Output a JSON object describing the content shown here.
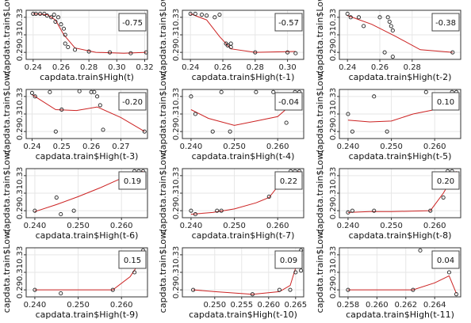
{
  "chart_data": [
    {
      "type": "scatter",
      "xlabel": "capdata.train$High(t)",
      "ylabel": "capdata.train$Low(",
      "corr_label": "-0.75",
      "xlim": [
        0.235,
        0.322
      ],
      "ylim": [
        0.282,
        0.338
      ],
      "xticks": [
        0.24,
        0.26,
        0.28,
        0.3,
        0.32
      ],
      "xticklabels": [
        "0.24",
        "0.26",
        "0.28",
        "0.30",
        "0.32"
      ],
      "yticks": [
        0.29,
        0.31,
        0.33
      ],
      "yticklabels": [
        "0.29",
        "0.31",
        "0.33"
      ],
      "points": [
        [
          0.24,
          0.334
        ],
        [
          0.242,
          0.334
        ],
        [
          0.245,
          0.334
        ],
        [
          0.248,
          0.334
        ],
        [
          0.25,
          0.332
        ],
        [
          0.253,
          0.33
        ],
        [
          0.255,
          0.333
        ],
        [
          0.256,
          0.325
        ],
        [
          0.258,
          0.33
        ],
        [
          0.26,
          0.322
        ],
        [
          0.262,
          0.317
        ],
        [
          0.263,
          0.31
        ],
        [
          0.265,
          0.296
        ],
        [
          0.263,
          0.3
        ],
        [
          0.27,
          0.293
        ],
        [
          0.28,
          0.291
        ],
        [
          0.295,
          0.29
        ],
        [
          0.31,
          0.289
        ],
        [
          0.321,
          0.29
        ]
      ],
      "fit_line": [
        [
          0.24,
          0.334
        ],
        [
          0.25,
          0.333
        ],
        [
          0.256,
          0.327
        ],
        [
          0.262,
          0.31
        ],
        [
          0.27,
          0.295
        ],
        [
          0.285,
          0.29
        ],
        [
          0.305,
          0.289
        ],
        [
          0.321,
          0.29
        ]
      ]
    },
    {
      "type": "scatter",
      "xlabel": "capdata.train$High(t-1)",
      "ylabel": "capdata.train$Low(",
      "corr_label": "-0.57",
      "xlim": [
        0.235,
        0.31
      ],
      "ylim": [
        0.282,
        0.338
      ],
      "xticks": [
        0.24,
        0.26,
        0.28,
        0.3
      ],
      "xticklabels": [
        "0.24",
        "0.26",
        "0.28",
        "0.30"
      ],
      "yticks": [
        0.29,
        0.31,
        0.33
      ],
      "yticklabels": [
        "0.29",
        "0.31",
        "0.33"
      ],
      "points": [
        [
          0.24,
          0.334
        ],
        [
          0.243,
          0.334
        ],
        [
          0.247,
          0.333
        ],
        [
          0.25,
          0.332
        ],
        [
          0.255,
          0.33
        ],
        [
          0.258,
          0.333
        ],
        [
          0.262,
          0.3
        ],
        [
          0.263,
          0.298
        ],
        [
          0.265,
          0.296
        ],
        [
          0.265,
          0.3
        ],
        [
          0.28,
          0.29
        ],
        [
          0.3,
          0.29
        ],
        [
          0.305,
          0.289
        ]
      ],
      "fit_line": [
        [
          0.24,
          0.334
        ],
        [
          0.25,
          0.327
        ],
        [
          0.258,
          0.308
        ],
        [
          0.265,
          0.294
        ],
        [
          0.28,
          0.29
        ],
        [
          0.305,
          0.291
        ]
      ]
    },
    {
      "type": "scatter",
      "xlabel": "capdata.train$High(t-2)",
      "ylabel": "capdata.train$Low(",
      "corr_label": "-0.38",
      "xlim": [
        0.235,
        0.31
      ],
      "ylim": [
        0.282,
        0.338
      ],
      "xticks": [
        0.24,
        0.26,
        0.28
      ],
      "xticklabels": [
        "0.24",
        "0.26",
        "0.28"
      ],
      "yticks": [
        0.29,
        0.31,
        0.33
      ],
      "yticklabels": [
        "0.29",
        "0.31",
        "0.33"
      ],
      "points": [
        [
          0.24,
          0.334
        ],
        [
          0.242,
          0.33
        ],
        [
          0.247,
          0.33
        ],
        [
          0.25,
          0.32
        ],
        [
          0.26,
          0.33
        ],
        [
          0.265,
          0.33
        ],
        [
          0.266,
          0.325
        ],
        [
          0.267,
          0.32
        ],
        [
          0.268,
          0.315
        ],
        [
          0.263,
          0.29
        ],
        [
          0.268,
          0.285
        ],
        [
          0.305,
          0.29
        ]
      ],
      "fit_line": [
        [
          0.24,
          0.332
        ],
        [
          0.255,
          0.322
        ],
        [
          0.27,
          0.308
        ],
        [
          0.285,
          0.293
        ],
        [
          0.305,
          0.29
        ]
      ]
    },
    {
      "type": "scatter",
      "xlabel": "capdata.train$High(t-3)",
      "ylabel": "capdata.train$Low(",
      "corr_label": "-0.20",
      "xlim": [
        0.238,
        0.279
      ],
      "ylim": [
        0.282,
        0.338
      ],
      "xticks": [
        0.24,
        0.25,
        0.26,
        0.27
      ],
      "xticklabels": [
        "0.24",
        "0.25",
        "0.26",
        "0.27"
      ],
      "yticks": [
        0.29,
        0.31,
        0.33
      ],
      "yticklabels": [
        "0.29",
        "0.31",
        "0.33"
      ],
      "points": [
        [
          0.24,
          0.334
        ],
        [
          0.241,
          0.33
        ],
        [
          0.246,
          0.335
        ],
        [
          0.248,
          0.29
        ],
        [
          0.25,
          0.315
        ],
        [
          0.256,
          0.336
        ],
        [
          0.26,
          0.335
        ],
        [
          0.261,
          0.335
        ],
        [
          0.262,
          0.33
        ],
        [
          0.263,
          0.32
        ],
        [
          0.264,
          0.292
        ],
        [
          0.278,
          0.29
        ]
      ],
      "fit_line": [
        [
          0.24,
          0.332
        ],
        [
          0.248,
          0.315
        ],
        [
          0.255,
          0.314
        ],
        [
          0.262,
          0.318
        ],
        [
          0.27,
          0.306
        ],
        [
          0.278,
          0.29
        ]
      ]
    },
    {
      "type": "scatter",
      "xlabel": "capdata.train$High(t-4)",
      "ylabel": "capdata.train$Low(",
      "corr_label": "-0.04",
      "xlim": [
        0.238,
        0.266
      ],
      "ylim": [
        0.282,
        0.338
      ],
      "xticks": [
        0.24,
        0.25,
        0.26
      ],
      "xticklabels": [
        "0.240",
        "0.250",
        "0.260"
      ],
      "yticks": [
        0.29,
        0.31,
        0.33
      ],
      "yticklabels": [
        "0.29",
        "0.31",
        "0.33"
      ],
      "points": [
        [
          0.24,
          0.33
        ],
        [
          0.241,
          0.31
        ],
        [
          0.245,
          0.29
        ],
        [
          0.247,
          0.335
        ],
        [
          0.249,
          0.29
        ],
        [
          0.255,
          0.335
        ],
        [
          0.259,
          0.335
        ],
        [
          0.26,
          0.33
        ],
        [
          0.262,
          0.3
        ],
        [
          0.264,
          0.335
        ],
        [
          0.265,
          0.335
        ]
      ],
      "fit_line": [
        [
          0.24,
          0.315
        ],
        [
          0.244,
          0.305
        ],
        [
          0.25,
          0.297
        ],
        [
          0.255,
          0.302
        ],
        [
          0.26,
          0.307
        ],
        [
          0.263,
          0.32
        ],
        [
          0.265,
          0.334
        ]
      ]
    },
    {
      "type": "scatter",
      "xlabel": "capdata.train$High(t-5)",
      "ylabel": "capdata.train$Low(",
      "corr_label": "0.10",
      "xlim": [
        0.238,
        0.266
      ],
      "ylim": [
        0.282,
        0.338
      ],
      "xticks": [
        0.24,
        0.25,
        0.26
      ],
      "xticklabels": [
        "0.240",
        "0.250",
        "0.260"
      ],
      "yticks": [
        0.29,
        0.31,
        0.33
      ],
      "yticklabels": [
        "0.29",
        "0.31",
        "0.33"
      ],
      "points": [
        [
          0.24,
          0.31
        ],
        [
          0.241,
          0.29
        ],
        [
          0.246,
          0.33
        ],
        [
          0.249,
          0.29
        ],
        [
          0.258,
          0.335
        ],
        [
          0.262,
          0.33
        ],
        [
          0.264,
          0.335
        ],
        [
          0.265,
          0.335
        ]
      ],
      "fit_line": [
        [
          0.24,
          0.303
        ],
        [
          0.245,
          0.301
        ],
        [
          0.25,
          0.302
        ],
        [
          0.255,
          0.31
        ],
        [
          0.26,
          0.315
        ],
        [
          0.263,
          0.326
        ],
        [
          0.265,
          0.334
        ]
      ]
    },
    {
      "type": "scatter",
      "xlabel": "capdata.train$High(t-6)",
      "ylabel": "capdata.train$Low(",
      "corr_label": "0.19",
      "xlim": [
        0.238,
        0.266
      ],
      "ylim": [
        0.282,
        0.338
      ],
      "xticks": [
        0.24,
        0.25,
        0.26
      ],
      "xticklabels": [
        "0.240",
        "0.250",
        "0.260"
      ],
      "yticks": [
        0.29,
        0.31,
        0.33
      ],
      "yticklabels": [
        "0.29",
        "0.31",
        "0.33"
      ],
      "points": [
        [
          0.24,
          0.29
        ],
        [
          0.245,
          0.305
        ],
        [
          0.246,
          0.286
        ],
        [
          0.249,
          0.29
        ],
        [
          0.26,
          0.33
        ],
        [
          0.263,
          0.335
        ],
        [
          0.264,
          0.335
        ],
        [
          0.265,
          0.335
        ]
      ],
      "fit_line": [
        [
          0.24,
          0.289
        ],
        [
          0.245,
          0.297
        ],
        [
          0.25,
          0.306
        ],
        [
          0.255,
          0.316
        ],
        [
          0.26,
          0.327
        ],
        [
          0.265,
          0.335
        ]
      ]
    },
    {
      "type": "scatter",
      "xlabel": "capdata.train$High(t-7)",
      "ylabel": "capdata.train$Low(",
      "corr_label": "0.22",
      "xlim": [
        0.238,
        0.266
      ],
      "ylim": [
        0.282,
        0.338
      ],
      "xticks": [
        0.24,
        0.25,
        0.26
      ],
      "xticklabels": [
        "0.240",
        "0.250",
        "0.260"
      ],
      "yticks": [
        0.29,
        0.31,
        0.33
      ],
      "yticklabels": [
        "0.29",
        "0.31",
        "0.33"
      ],
      "points": [
        [
          0.24,
          0.29
        ],
        [
          0.241,
          0.286
        ],
        [
          0.246,
          0.29
        ],
        [
          0.247,
          0.29
        ],
        [
          0.258,
          0.306
        ],
        [
          0.263,
          0.335
        ],
        [
          0.264,
          0.335
        ],
        [
          0.265,
          0.335
        ]
      ],
      "fit_line": [
        [
          0.24,
          0.286
        ],
        [
          0.245,
          0.288
        ],
        [
          0.25,
          0.292
        ],
        [
          0.255,
          0.299
        ],
        [
          0.258,
          0.305
        ],
        [
          0.262,
          0.33
        ],
        [
          0.265,
          0.335
        ]
      ]
    },
    {
      "type": "scatter",
      "xlabel": "capdata.train$High(t-8)",
      "ylabel": "capdata.train$Low(",
      "corr_label": "0.20",
      "xlim": [
        0.238,
        0.266
      ],
      "ylim": [
        0.282,
        0.338
      ],
      "xticks": [
        0.24,
        0.25,
        0.26
      ],
      "xticklabels": [
        "0.240",
        "0.250",
        "0.260"
      ],
      "yticks": [
        0.29,
        0.31,
        0.33
      ],
      "yticklabels": [
        "0.29",
        "0.31",
        "0.33"
      ],
      "points": [
        [
          0.24,
          0.288
        ],
        [
          0.241,
          0.29
        ],
        [
          0.246,
          0.29
        ],
        [
          0.259,
          0.29
        ],
        [
          0.262,
          0.305
        ],
        [
          0.263,
          0.335
        ],
        [
          0.264,
          0.335
        ],
        [
          0.265,
          0.33
        ]
      ],
      "fit_line": [
        [
          0.24,
          0.288
        ],
        [
          0.245,
          0.289
        ],
        [
          0.25,
          0.289
        ],
        [
          0.259,
          0.29
        ],
        [
          0.262,
          0.31
        ],
        [
          0.265,
          0.335
        ]
      ]
    },
    {
      "type": "scatter",
      "xlabel": "capdata.train$High(t-9)",
      "ylabel": "capdata.train$Low(",
      "corr_label": "0.15",
      "xlim": [
        0.238,
        0.266
      ],
      "ylim": [
        0.282,
        0.338
      ],
      "xticks": [
        0.24,
        0.25,
        0.26
      ],
      "xticklabels": [
        "0.240",
        "0.250",
        "0.260"
      ],
      "yticks": [
        0.29,
        0.31,
        0.33
      ],
      "yticklabels": [
        "0.29",
        "0.31",
        "0.33"
      ],
      "points": [
        [
          0.24,
          0.29
        ],
        [
          0.246,
          0.286
        ],
        [
          0.258,
          0.29
        ],
        [
          0.263,
          0.31
        ],
        [
          0.264,
          0.325
        ],
        [
          0.265,
          0.335
        ],
        [
          0.265,
          0.33
        ]
      ],
      "fit_line": [
        [
          0.24,
          0.29
        ],
        [
          0.25,
          0.29
        ],
        [
          0.258,
          0.29
        ],
        [
          0.262,
          0.305
        ],
        [
          0.264,
          0.32
        ],
        [
          0.265,
          0.335
        ]
      ]
    },
    {
      "type": "scatter",
      "xlabel": "capdata.train$High(t-10)",
      "ylabel": "capdata.train$Low(",
      "corr_label": "0.09",
      "xlim": [
        0.244,
        0.2665
      ],
      "ylim": [
        0.282,
        0.338
      ],
      "xticks": [
        0.25,
        0.255,
        0.26,
        0.265
      ],
      "xticklabels": [
        "0.250",
        "0.255",
        "0.260",
        "0.265"
      ],
      "yticks": [
        0.29,
        0.31,
        0.33
      ],
      "yticklabels": [
        "0.29",
        "0.31",
        "0.33"
      ],
      "points": [
        [
          0.246,
          0.29
        ],
        [
          0.257,
          0.285
        ],
        [
          0.262,
          0.29
        ],
        [
          0.264,
          0.29
        ],
        [
          0.265,
          0.31
        ],
        [
          0.265,
          0.33
        ],
        [
          0.266,
          0.335
        ],
        [
          0.266,
          0.312
        ]
      ],
      "fit_line": [
        [
          0.246,
          0.29
        ],
        [
          0.25,
          0.288
        ],
        [
          0.257,
          0.285
        ],
        [
          0.262,
          0.288
        ],
        [
          0.264,
          0.295
        ],
        [
          0.265,
          0.315
        ],
        [
          0.266,
          0.33
        ]
      ]
    },
    {
      "type": "scatter",
      "xlabel": "capdata.train$High(t-11)",
      "ylabel": "capdata.train$Low(",
      "corr_label": "0.04",
      "xlim": [
        0.2574,
        0.2658
      ],
      "ylim": [
        0.282,
        0.338
      ],
      "xticks": [
        0.258,
        0.26,
        0.262,
        0.264
      ],
      "xticklabels": [
        "0.258",
        "0.260",
        "0.262",
        "0.264"
      ],
      "yticks": [
        0.29,
        0.31,
        0.33
      ],
      "yticklabels": [
        "0.29",
        "0.31",
        "0.33"
      ],
      "points": [
        [
          0.258,
          0.29
        ],
        [
          0.2625,
          0.29
        ],
        [
          0.263,
          0.335
        ],
        [
          0.265,
          0.31
        ],
        [
          0.2655,
          0.285
        ]
      ],
      "fit_line": [
        [
          0.258,
          0.29
        ],
        [
          0.26,
          0.29
        ],
        [
          0.2625,
          0.29
        ],
        [
          0.264,
          0.298
        ],
        [
          0.265,
          0.306
        ],
        [
          0.2655,
          0.286
        ]
      ]
    }
  ]
}
